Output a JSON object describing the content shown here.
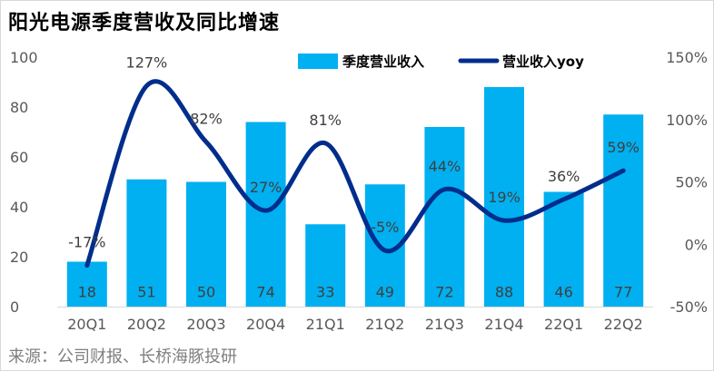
{
  "title": "阳光电源季度营收及同比增速",
  "source": "来源：公司财报、长桥海豚投研",
  "chart_data": {
    "type": "bar",
    "categories": [
      "20Q1",
      "20Q2",
      "20Q3",
      "20Q4",
      "21Q1",
      "21Q2",
      "21Q3",
      "21Q4",
      "22Q1",
      "22Q2"
    ],
    "series": [
      {
        "name": "季度营业收入",
        "type": "bar",
        "axis": "left",
        "color": "#00b0f0",
        "values": [
          18,
          51,
          50,
          74,
          33,
          49,
          72,
          88,
          46,
          77
        ],
        "labels": [
          "18",
          "51",
          "50",
          "74",
          "33",
          "49",
          "72",
          "88",
          "46",
          "77"
        ]
      },
      {
        "name": "营业收入yoy",
        "type": "line",
        "axis": "right",
        "color": "#002d8c",
        "values": [
          -17,
          127,
          82,
          27,
          81,
          -5,
          44,
          19,
          36,
          59
        ],
        "labels": [
          "-17%",
          "127%",
          "82%",
          "27%",
          "81%",
          "-5%",
          "44%",
          "19%",
          "36%",
          "59%"
        ]
      }
    ],
    "y_left": {
      "min": 0,
      "max": 100,
      "ticks": [
        "0",
        "20",
        "40",
        "60",
        "80",
        "100"
      ]
    },
    "y_right": {
      "min": -50,
      "max": 150,
      "ticks": [
        "-50%",
        "0%",
        "50%",
        "100%",
        "150%"
      ]
    },
    "grid": false,
    "legend_position": "top-right"
  }
}
